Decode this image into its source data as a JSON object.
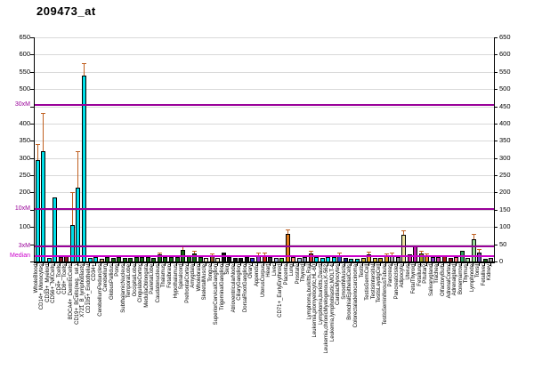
{
  "title": "209473_at",
  "chart_data": {
    "type": "bar",
    "title": "209473_at",
    "xlabel": "",
    "ylabel": "",
    "ylim": [
      0,
      650
    ],
    "ytick_step": 50,
    "grid": true,
    "legend": "none",
    "error_bar_color": "#c06020",
    "axis_text_color": "#000000",
    "y_axis": {
      "left_labels": [
        {
          "value": 650,
          "text": "650"
        },
        {
          "value": 600,
          "text": "600"
        },
        {
          "value": 550,
          "text": "550"
        },
        {
          "value": 500,
          "text": "500"
        },
        {
          "value": 400,
          "text": "400"
        },
        {
          "value": 350,
          "text": "350"
        },
        {
          "value": 300,
          "text": "300"
        },
        {
          "value": 250,
          "text": "250"
        },
        {
          "value": 200,
          "text": "200"
        },
        {
          "value": 100,
          "text": "100"
        }
      ],
      "right_labels": [
        {
          "value": 650,
          "text": "650"
        },
        {
          "value": 600,
          "text": "600"
        },
        {
          "value": 550,
          "text": "550"
        },
        {
          "value": 500,
          "text": "500"
        },
        {
          "value": 450,
          "text": "450"
        },
        {
          "value": 400,
          "text": "400"
        },
        {
          "value": 350,
          "text": "350"
        },
        {
          "value": 300,
          "text": "300"
        },
        {
          "value": 250,
          "text": "250"
        },
        {
          "value": 200,
          "text": "200"
        },
        {
          "value": 150,
          "text": "150"
        },
        {
          "value": 100,
          "text": "100"
        },
        {
          "value": 50,
          "text": "50"
        },
        {
          "value": 0,
          "text": "0"
        }
      ]
    },
    "reference_lines": [
      {
        "label": "30xM",
        "value": 455,
        "color": "#990099"
      },
      {
        "label": "10xM",
        "value": 152,
        "color": "#990099"
      },
      {
        "label": "3xM",
        "value": 45,
        "color": "#990099"
      },
      {
        "label": "Median",
        "value": 15,
        "color": "#cc00cc"
      }
    ],
    "bars": [
      {
        "label": "WholeBlood",
        "value": 293,
        "err": 340,
        "color": "#00dfe8"
      },
      {
        "label": "CD14+_Monocytes",
        "value": 320,
        "err": 430,
        "color": "#00dfe8"
      },
      {
        "label": "CD33+_Myeloid",
        "value": 10,
        "err": null,
        "color": "#00dfe8"
      },
      {
        "label": "CD56+_NKCells",
        "value": 185,
        "err": null,
        "color": "#00dfe8"
      },
      {
        "label": "CD4+_Tcells",
        "value": 13,
        "err": 18,
        "color": "#7a2020"
      },
      {
        "label": "CD8+_Tcells",
        "value": 18,
        "err": null,
        "color": "#7a2020"
      },
      {
        "label": "BDCA4+_DentriticCells",
        "value": 105,
        "err": 200,
        "color": "#00dfe8"
      },
      {
        "label": "CD19+_BCells(neg._sel.)",
        "value": 213,
        "err": 320,
        "color": "#00dfe8"
      },
      {
        "label": "X721_B_lymphoblasts",
        "value": 540,
        "err": 575,
        "color": "#00dfe8"
      },
      {
        "label": "CD105+_Endothelial",
        "value": 10,
        "err": null,
        "color": "#00dfe8"
      },
      {
        "label": "CD34+",
        "value": 12,
        "err": 18,
        "color": "#00dfe8"
      },
      {
        "label": "CerebellumPeduncles",
        "value": 9,
        "err": null,
        "color": "#c8a878"
      },
      {
        "label": "Cerebellum",
        "value": 13,
        "err": null,
        "color": "#176617"
      },
      {
        "label": "GlobusPallidus",
        "value": 10,
        "err": null,
        "color": "#176617"
      },
      {
        "label": "Pons",
        "value": 12,
        "err": null,
        "color": "#176617"
      },
      {
        "label": "SubthalamicNucleus",
        "value": 11,
        "err": null,
        "color": "#176617"
      },
      {
        "label": "TemporalLobe",
        "value": 10,
        "err": null,
        "color": "#176617"
      },
      {
        "label": "OccipitalLobe",
        "value": 12,
        "err": null,
        "color": "#176617"
      },
      {
        "label": "CingulateCortex",
        "value": 13,
        "err": null,
        "color": "#176617"
      },
      {
        "label": "MedullaOblongata",
        "value": 12,
        "err": null,
        "color": "#176617"
      },
      {
        "label": "ParietalLobe",
        "value": 11,
        "err": null,
        "color": "#176617"
      },
      {
        "label": "Caudatenucleus",
        "value": 20,
        "err": 26,
        "color": "#176617"
      },
      {
        "label": "Thalamus",
        "value": 12,
        "err": null,
        "color": "#176617"
      },
      {
        "label": "Fetalbrain",
        "value": 14,
        "err": null,
        "color": "#176617"
      },
      {
        "label": "Hypothalamus",
        "value": 13,
        "err": null,
        "color": "#176617"
      },
      {
        "label": "Spinalcord",
        "value": 33,
        "err": 44,
        "color": "#176617"
      },
      {
        "label": "PrefrontalCortex",
        "value": 17,
        "err": null,
        "color": "#176617"
      },
      {
        "label": "Amygdala",
        "value": 24,
        "err": 31,
        "color": "#176617"
      },
      {
        "label": "Wholebrain",
        "value": 14,
        "err": null,
        "color": "#176617"
      },
      {
        "label": "SkeletalMuscle",
        "value": 11,
        "err": null,
        "color": "#efe8cc"
      },
      {
        "label": "Tongue",
        "value": 17,
        "err": 22,
        "color": "#8b5a2b"
      },
      {
        "label": "SuperiorCervicalGanglion",
        "value": 11,
        "err": null,
        "color": "#efe8cc"
      },
      {
        "label": "TrigeminalGanglion",
        "value": 27,
        "err": null,
        "color": "#141414"
      },
      {
        "label": "Skin",
        "value": 13,
        "err": null,
        "color": "#141414"
      },
      {
        "label": "AtrioventricularNode",
        "value": 11,
        "err": null,
        "color": "#141414"
      },
      {
        "label": "CiliaryGanglion",
        "value": 11,
        "err": null,
        "color": "#141414"
      },
      {
        "label": "DorsalRootGanglion",
        "value": 14,
        "err": null,
        "color": "#141414"
      },
      {
        "label": "Ovary",
        "value": 11,
        "err": null,
        "color": "#2832c8"
      },
      {
        "label": "Appendix",
        "value": 19,
        "err": 25,
        "color": "#9932cc"
      },
      {
        "label": "UterusCorpus",
        "value": 19,
        "err": 27,
        "color": "#c82828"
      },
      {
        "label": "Heart",
        "value": 13,
        "err": null,
        "color": "#303030"
      },
      {
        "label": "Liver",
        "value": 11,
        "err": null,
        "color": "#aab4dc"
      },
      {
        "label": "CD71+_EarlyErythroid",
        "value": 11,
        "err": null,
        "color": "#50c832"
      },
      {
        "label": "Placenta",
        "value": 81,
        "err": 93,
        "color": "#e07818"
      },
      {
        "label": "Lung",
        "value": 14,
        "err": null,
        "color": "#f0a078"
      },
      {
        "label": "Prostate",
        "value": 11,
        "err": null,
        "color": "#a8c8e8"
      },
      {
        "label": "Thyroid",
        "value": 14,
        "err": null,
        "color": "#8593a8"
      },
      {
        "label": "Lymphoma,burkitts,Raji",
        "value": 24,
        "err": 32,
        "color": "#d03030"
      },
      {
        "label": "Leukemia,promyelocytic,HL-60",
        "value": 14,
        "err": null,
        "color": "#00dfe8"
      },
      {
        "label": "Lymphoma,burkitts,Daudi",
        "value": 11,
        "err": null,
        "color": "#00dfe8"
      },
      {
        "label": "Leukemia,chronicMyelogenous,K-562",
        "value": 14,
        "err": null,
        "color": "#00dfe8"
      },
      {
        "label": "Leukemia,lymphoblastic,MOLT-4",
        "value": 14,
        "err": null,
        "color": "#00dfe8"
      },
      {
        "label": "CardiacMyocytes",
        "value": 19,
        "err": 26,
        "color": "#3050c8"
      },
      {
        "label": "SmoothMuscle",
        "value": 11,
        "err": null,
        "color": "#202880"
      },
      {
        "label": "BronchialEpithelialCells",
        "value": 9,
        "err": null,
        "color": "#20b2aa"
      },
      {
        "label": "Colorectaladenocarcinoma",
        "value": 9,
        "err": null,
        "color": "#00ced1"
      },
      {
        "label": "Testis",
        "value": 11,
        "err": null,
        "color": "#c8b040"
      },
      {
        "label": "TestisGermCell",
        "value": 21,
        "err": 29,
        "color": "#e0a020"
      },
      {
        "label": "TestisIntersitial",
        "value": 11,
        "err": null,
        "color": "#d4b840"
      },
      {
        "label": "TestisLeydigCell",
        "value": 11,
        "err": null,
        "color": "#c09820"
      },
      {
        "label": "TestisSeminiferousTubule",
        "value": 17,
        "err": 24,
        "color": "#d89830"
      },
      {
        "label": "Pancreas",
        "value": 19,
        "err": 27,
        "color": "#a8a8a8"
      },
      {
        "label": "PancreaticIslet",
        "value": 14,
        "err": null,
        "color": "#909090"
      },
      {
        "label": "Adipocyte",
        "value": 78,
        "err": 91,
        "color": "#e8e0a0"
      },
      {
        "label": "Uterus",
        "value": 20,
        "err": null,
        "color": "#d030a0"
      },
      {
        "label": "FetalThyroid",
        "value": 45,
        "err": null,
        "color": "#c020b0"
      },
      {
        "label": "Fetallung",
        "value": 24,
        "err": 31,
        "color": "#98a020"
      },
      {
        "label": "Pituitary",
        "value": 17,
        "err": 24,
        "color": "#e08030"
      },
      {
        "label": "Salivarygland",
        "value": 13,
        "err": null,
        "color": "#8040c0"
      },
      {
        "label": "Trachea",
        "value": 14,
        "err": null,
        "color": "#c040a0"
      },
      {
        "label": "OlfactoryBulb",
        "value": 17,
        "err": null,
        "color": "#a02020"
      },
      {
        "label": "AdrenalCortex",
        "value": 11,
        "err": null,
        "color": "#802020"
      },
      {
        "label": "Adrenalgland",
        "value": 13,
        "err": null,
        "color": "#f08080"
      },
      {
        "label": "Bonemarrow",
        "value": 31,
        "err": null,
        "color": "#30a060"
      },
      {
        "label": "Thymus",
        "value": 11,
        "err": null,
        "color": "#a8d8a8"
      },
      {
        "label": "Lymphnode",
        "value": 65,
        "err": 80,
        "color": "#98d898"
      },
      {
        "label": "Tonsil",
        "value": 27,
        "err": 36,
        "color": "#7050b0"
      },
      {
        "label": "Fetalliver",
        "value": 9,
        "err": null,
        "color": "#206020"
      },
      {
        "label": "Kidney",
        "value": 11,
        "err": null,
        "color": "#a0a0a0"
      }
    ]
  }
}
